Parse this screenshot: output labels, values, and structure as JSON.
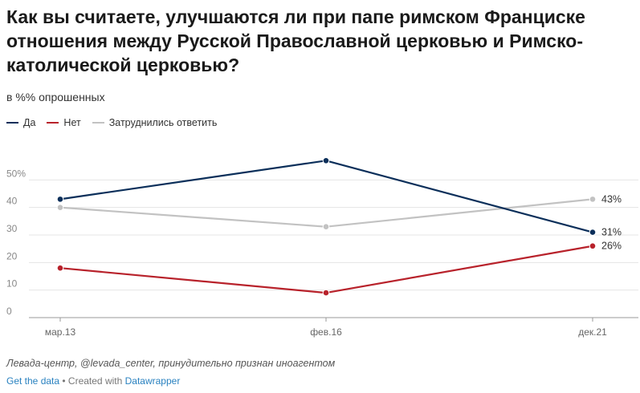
{
  "header": {
    "title": "Как вы считаете, улучшаются ли при папе римском Франциске отношения между Русской Православной церковью и Римско-католической церковью?",
    "subtitle": "в %% опрошенных"
  },
  "chart_data": {
    "type": "line",
    "categories": [
      "мар.13",
      "фев.16",
      "дек.21"
    ],
    "series": [
      {
        "name": "Да",
        "color": "#0b2f5a",
        "values": [
          43,
          57,
          31
        ],
        "end_label": "31%"
      },
      {
        "name": "Нет",
        "color": "#b8222b",
        "values": [
          18,
          9,
          26
        ],
        "end_label": "26%"
      },
      {
        "name": "Затруднились ответить",
        "color": "#c2c2c2",
        "values": [
          40,
          33,
          43
        ],
        "end_label": "43%"
      }
    ],
    "yticks": [
      "0",
      "10",
      "20",
      "30",
      "40",
      "50%"
    ],
    "ylim": [
      0,
      60
    ],
    "grid": true,
    "legend_position": "top-left"
  },
  "footer": {
    "source": "Левада-центр, @levada_center, принудительно признан иноагентом",
    "get_data": "Get the data",
    "separator": " • Created with ",
    "datawrapper": "Datawrapper"
  }
}
